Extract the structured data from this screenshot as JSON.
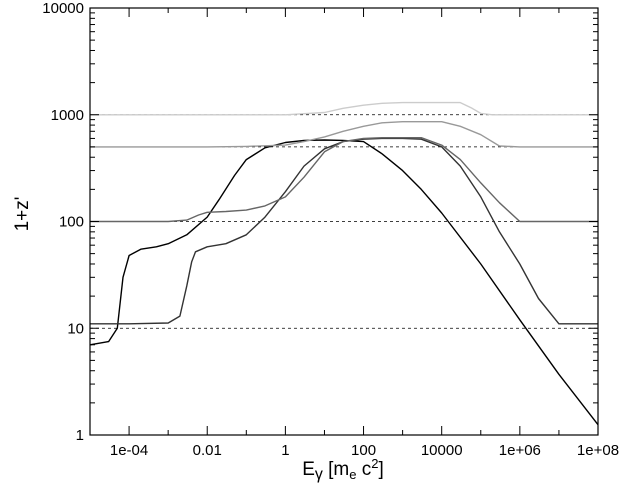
{
  "chart_data": {
    "type": "line",
    "title": "",
    "xlabel": {
      "main": "E",
      "greek": "γ",
      "bracket_open": " [m",
      "sub": "e",
      "mid": " c",
      "sup": "2",
      "bracket_close": "]"
    },
    "ylabel": "1+z'",
    "xscale": "log",
    "yscale": "log",
    "xlim": [
      1e-05,
      100000000
    ],
    "ylim": [
      1,
      10000
    ],
    "x_ticks": [
      {
        "value": 0.0001,
        "label": "1e-04"
      },
      {
        "value": 0.01,
        "label": "0.01"
      },
      {
        "value": 1,
        "label": "1"
      },
      {
        "value": 100,
        "label": "100"
      },
      {
        "value": 10000,
        "label": "10000"
      },
      {
        "value": 1000000,
        "label": "1e+06"
      },
      {
        "value": 100000000,
        "label": "1e+08"
      }
    ],
    "y_ticks": [
      {
        "value": 1,
        "label": "1"
      },
      {
        "value": 10,
        "label": "10"
      },
      {
        "value": 100,
        "label": "100"
      },
      {
        "value": 1000,
        "label": "1000"
      },
      {
        "value": 10000,
        "label": "10000"
      }
    ],
    "reference_lines_y": [
      10,
      100,
      500,
      1000
    ],
    "series": [
      {
        "color": "#000000",
        "points": [
          [
            1e-05,
            7
          ],
          [
            3e-05,
            7.5
          ],
          [
            5e-05,
            10
          ],
          [
            7e-05,
            30
          ],
          [
            0.0001,
            48
          ],
          [
            0.0002,
            55
          ],
          [
            0.0005,
            58
          ],
          [
            0.001,
            62
          ],
          [
            0.003,
            75
          ],
          [
            0.01,
            110
          ],
          [
            0.02,
            160
          ],
          [
            0.05,
            270
          ],
          [
            0.1,
            380
          ],
          [
            0.3,
            490
          ],
          [
            1,
            550
          ],
          [
            3,
            575
          ],
          [
            10,
            580
          ],
          [
            30,
            575
          ],
          [
            100,
            560
          ],
          [
            300,
            430
          ],
          [
            1000,
            300
          ],
          [
            3000,
            200
          ],
          [
            10000,
            120
          ],
          [
            100000,
            40
          ],
          [
            1000000,
            12
          ],
          [
            10000000,
            3.7
          ],
          [
            100000000,
            1.25
          ]
        ]
      },
      {
        "color": "#333333",
        "points": [
          [
            1e-05,
            11
          ],
          [
            0.0001,
            11
          ],
          [
            0.001,
            11.2
          ],
          [
            0.002,
            13
          ],
          [
            0.003,
            25
          ],
          [
            0.004,
            42
          ],
          [
            0.005,
            52
          ],
          [
            0.01,
            58
          ],
          [
            0.03,
            62
          ],
          [
            0.1,
            75
          ],
          [
            0.3,
            110
          ],
          [
            1,
            190
          ],
          [
            3,
            330
          ],
          [
            10,
            480
          ],
          [
            30,
            560
          ],
          [
            100,
            590
          ],
          [
            300,
            600
          ],
          [
            1000,
            600
          ],
          [
            3000,
            590
          ],
          [
            10000,
            500
          ],
          [
            30000,
            330
          ],
          [
            100000,
            170
          ],
          [
            300000,
            80
          ],
          [
            1000000,
            40
          ],
          [
            3000000,
            19
          ],
          [
            10000000,
            11
          ],
          [
            30000000,
            11
          ],
          [
            100000000,
            11
          ]
        ]
      },
      {
        "color": "#666666",
        "points": [
          [
            1e-05,
            100
          ],
          [
            0.001,
            100
          ],
          [
            0.003,
            103
          ],
          [
            0.006,
            115
          ],
          [
            0.01,
            122
          ],
          [
            0.03,
            124
          ],
          [
            0.1,
            128
          ],
          [
            0.3,
            140
          ],
          [
            1,
            170
          ],
          [
            3,
            260
          ],
          [
            10,
            450
          ],
          [
            30,
            560
          ],
          [
            100,
            600
          ],
          [
            300,
            610
          ],
          [
            1000,
            610
          ],
          [
            3000,
            610
          ],
          [
            10000,
            520
          ],
          [
            30000,
            380
          ],
          [
            100000,
            230
          ],
          [
            300000,
            150
          ],
          [
            1000000,
            100
          ],
          [
            10000000,
            100
          ],
          [
            100000000,
            100
          ]
        ]
      },
      {
        "color": "#999999",
        "points": [
          [
            1e-05,
            500
          ],
          [
            0.01,
            500
          ],
          [
            0.1,
            505
          ],
          [
            1,
            520
          ],
          [
            3,
            560
          ],
          [
            10,
            620
          ],
          [
            30,
            700
          ],
          [
            100,
            780
          ],
          [
            300,
            840
          ],
          [
            1000,
            860
          ],
          [
            3000,
            860
          ],
          [
            10000,
            860
          ],
          [
            30000,
            780
          ],
          [
            100000,
            650
          ],
          [
            300000,
            510
          ],
          [
            1000000,
            500
          ],
          [
            100000000,
            500
          ]
        ]
      },
      {
        "color": "#cccccc",
        "points": [
          [
            1e-05,
            1000
          ],
          [
            1,
            1000
          ],
          [
            10,
            1050
          ],
          [
            30,
            1150
          ],
          [
            100,
            1230
          ],
          [
            300,
            1280
          ],
          [
            1000,
            1300
          ],
          [
            10000,
            1300
          ],
          [
            30000,
            1300
          ],
          [
            60000,
            1150
          ],
          [
            100000,
            1030
          ],
          [
            200000,
            1000
          ],
          [
            100000000,
            1000
          ]
        ]
      }
    ]
  }
}
